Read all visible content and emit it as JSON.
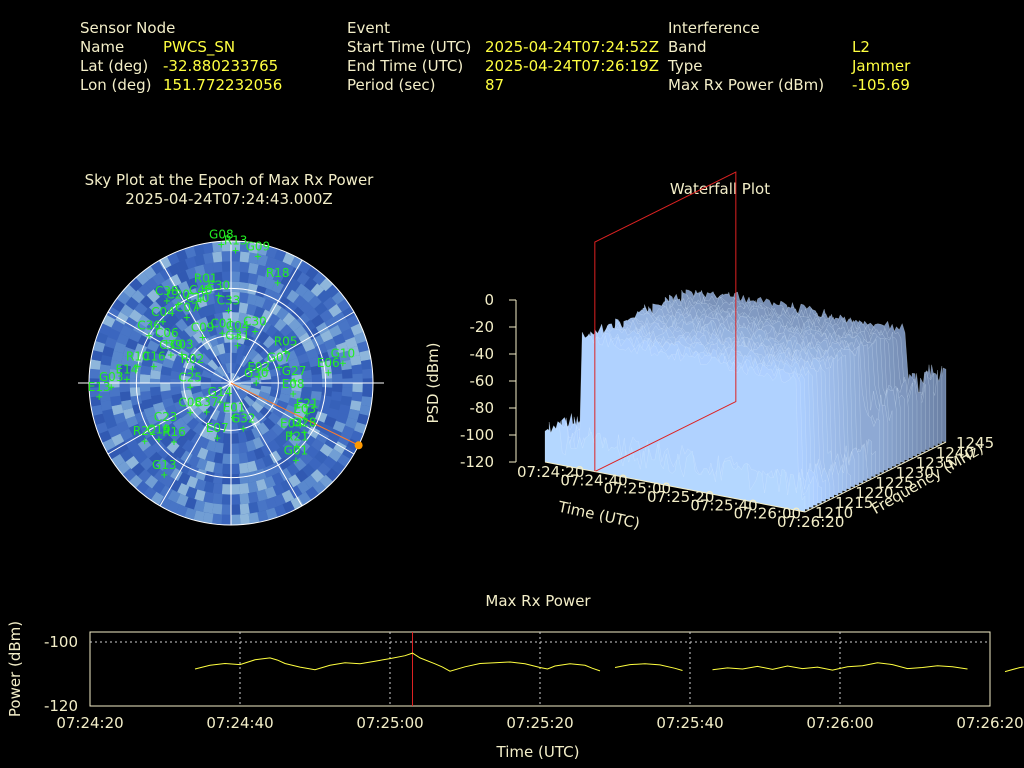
{
  "header": {
    "sensor": {
      "heading": "Sensor Node",
      "rows": [
        {
          "label": "Name",
          "value": "PWCS_SN"
        },
        {
          "label": "Lat (deg)",
          "value": "-32.880233765"
        },
        {
          "label": "Lon (deg)",
          "value": "151.772232056"
        }
      ]
    },
    "event": {
      "heading": "Event",
      "rows": [
        {
          "label": "Start Time (UTC)",
          "value": "2025-04-24T07:24:52Z"
        },
        {
          "label": "End Time (UTC)",
          "value": "2025-04-24T07:26:19Z"
        },
        {
          "label": "Period (sec)",
          "value": "87"
        }
      ]
    },
    "interference": {
      "heading": "Interference",
      "rows": [
        {
          "label": "Band",
          "value": "L2"
        },
        {
          "label": "Type",
          "value": "Jammer"
        },
        {
          "label": "Max Rx Power (dBm)",
          "value": "-105.69"
        }
      ]
    }
  },
  "colors": {
    "text": "#f3eec8",
    "value": "#ffff40",
    "satellite": "#22ee22",
    "marker": "#ff3333",
    "jammer": "#ff9900"
  },
  "chart_data": [
    {
      "type": "scatter",
      "name": "sky",
      "title": "Sky Plot at the Epoch of Max Rx Power",
      "subtitle": "2025-04-24T07:24:43.000Z",
      "projection": "polar",
      "satellites": [
        {
          "id": "G09",
          "az": 12,
          "el": 82
        },
        {
          "id": "G08",
          "az": 356,
          "el": 88
        },
        {
          "id": "R13",
          "az": 2,
          "el": 84
        },
        {
          "id": "R18",
          "az": 25,
          "el": 70
        },
        {
          "id": "C38",
          "az": 322,
          "el": 66
        },
        {
          "id": "C20",
          "az": 326,
          "el": 60
        },
        {
          "id": "R01",
          "az": 345,
          "el": 62
        },
        {
          "id": "C40",
          "az": 340,
          "el": 56
        },
        {
          "id": "C10",
          "az": 336,
          "el": 52
        },
        {
          "id": "E30",
          "az": 352,
          "el": 56
        },
        {
          "id": "C04",
          "az": 312,
          "el": 58
        },
        {
          "id": "C07",
          "az": 326,
          "el": 50
        },
        {
          "id": "C33",
          "az": 358,
          "el": 46
        },
        {
          "id": "C30",
          "az": 25,
          "el": 36
        },
        {
          "id": "C01",
          "az": 350,
          "el": 32
        },
        {
          "id": "C04",
          "az": 8,
          "el": 30
        },
        {
          "id": "C39",
          "az": 295,
          "el": 42
        },
        {
          "id": "C06",
          "az": 302,
          "el": 48
        },
        {
          "id": "C09",
          "az": 328,
          "el": 34
        },
        {
          "id": "G31",
          "az": 10,
          "el": 24
        },
        {
          "id": "C03",
          "az": 300,
          "el": 36
        },
        {
          "id": "R02",
          "az": 290,
          "el": 26
        },
        {
          "id": "C36",
          "az": 300,
          "el": 60
        },
        {
          "id": "R05",
          "az": 60,
          "el": 40
        },
        {
          "id": "E02",
          "az": 78,
          "el": 18
        },
        {
          "id": "G07",
          "az": 72,
          "el": 32
        },
        {
          "id": "R10",
          "az": 280,
          "el": 60
        },
        {
          "id": "C16",
          "az": 282,
          "el": 50
        },
        {
          "id": "E14",
          "az": 272,
          "el": 66
        },
        {
          "id": "G03",
          "az": 268,
          "el": 76
        },
        {
          "id": "E13",
          "az": 264,
          "el": 84
        },
        {
          "id": "G10",
          "az": 80,
          "el": 72
        },
        {
          "id": "E06",
          "az": 84,
          "el": 62
        },
        {
          "id": "G27",
          "az": 88,
          "el": 40
        },
        {
          "id": "C25",
          "az": 264,
          "el": 26
        },
        {
          "id": "G30",
          "az": 90,
          "el": 16
        },
        {
          "id": "E08",
          "az": 100,
          "el": 40
        },
        {
          "id": "C23",
          "az": 236,
          "el": 50
        },
        {
          "id": "C08",
          "az": 234,
          "el": 32
        },
        {
          "id": "E21",
          "az": 112,
          "el": 52
        },
        {
          "id": "E04",
          "az": 130,
          "el": 50
        },
        {
          "id": "G14",
          "az": 210,
          "el": 14
        },
        {
          "id": "C37",
          "az": 220,
          "el": 24
        },
        {
          "id": "R16",
          "az": 224,
          "el": 52
        },
        {
          "id": "R22",
          "az": 236,
          "el": 66
        },
        {
          "id": "E07",
          "az": 194,
          "el": 36
        },
        {
          "id": "C19",
          "az": 232,
          "el": 58
        },
        {
          "id": "E03",
          "az": 116,
          "el": 52
        },
        {
          "id": "G28",
          "az": 124,
          "el": 56
        },
        {
          "id": "R21",
          "az": 134,
          "el": 58
        },
        {
          "id": "G01",
          "az": 140,
          "el": 64
        },
        {
          "id": "G13",
          "az": 216,
          "el": 72
        },
        {
          "id": "G32",
          "az": 165,
          "el": 30
        },
        {
          "id": "E01",
          "az": 175,
          "el": 22
        }
      ],
      "jammer": {
        "az": 116,
        "el": 90
      }
    },
    {
      "type": "area",
      "name": "waterfall",
      "title": "Waterfall Plot",
      "xlabel": "Time (UTC)",
      "ylabel": "Frequency (MHz)",
      "zlabel": "PSD (dBm)",
      "x_ticks": [
        "07:24:20",
        "07:24:40",
        "07:25:00",
        "07:25:20",
        "07:25:40",
        "07:26:00",
        "07:26:20"
      ],
      "y_ticks": [
        "1210",
        "1215",
        "1220",
        "1225",
        "1230",
        "1235",
        "1240",
        "1245"
      ],
      "z_ticks": [
        "0",
        "-20",
        "-40",
        "-60",
        "-80",
        "-100",
        "-120"
      ],
      "zlim": [
        -120,
        0
      ],
      "marker_time": "07:24:43"
    },
    {
      "type": "line",
      "name": "maxrx",
      "title": "Max Rx Power",
      "xlabel": "Time (UTC)",
      "ylabel": "Power (dBm)",
      "x_ticks": [
        "07:24:20",
        "07:24:40",
        "07:25:00",
        "07:25:20",
        "07:25:40",
        "07:26:00",
        "07:26:20"
      ],
      "y_ticks": [
        "-100",
        "-120"
      ],
      "ylim": [
        -120,
        -100
      ],
      "grid": true,
      "marker_time_sec": 43,
      "segments": [
        [
          [
            14,
            -110
          ],
          [
            16,
            -109
          ],
          [
            18,
            -108.5
          ],
          [
            20,
            -108.8
          ],
          [
            22,
            -107.5
          ],
          [
            24,
            -107
          ],
          [
            25,
            -107.6
          ],
          [
            26,
            -108.5
          ],
          [
            28,
            -109.5
          ],
          [
            30,
            -110.2
          ],
          [
            32,
            -109
          ],
          [
            34,
            -108.3
          ],
          [
            36,
            -108.6
          ],
          [
            38,
            -107.9
          ],
          [
            40,
            -107.2
          ],
          [
            42,
            -106.4
          ],
          [
            43,
            -105.7
          ],
          [
            44,
            -107
          ],
          [
            46,
            -108.6
          ],
          [
            47,
            -109.5
          ],
          [
            48,
            -110.6
          ],
          [
            50,
            -109.4
          ],
          [
            52,
            -108.5
          ],
          [
            54,
            -108.3
          ],
          [
            56,
            -108.1
          ],
          [
            58,
            -108.6
          ],
          [
            60,
            -109.6
          ],
          [
            61,
            -110
          ],
          [
            62,
            -109.2
          ],
          [
            64,
            -108.6
          ],
          [
            66,
            -109
          ],
          [
            67,
            -109.8
          ],
          [
            68,
            -110.5
          ]
        ],
        [
          [
            70,
            -109.6
          ],
          [
            72,
            -108.8
          ],
          [
            74,
            -108.6
          ],
          [
            76,
            -108.9
          ],
          [
            78,
            -109.8
          ],
          [
            79,
            -110.4
          ]
        ],
        [
          [
            83,
            -110.2
          ],
          [
            85,
            -109.7
          ],
          [
            87,
            -110
          ],
          [
            89,
            -109.3
          ],
          [
            91,
            -110.1
          ],
          [
            93,
            -109.2
          ],
          [
            95,
            -109.9
          ],
          [
            97,
            -109.5
          ],
          [
            99,
            -110.3
          ],
          [
            101,
            -109.4
          ],
          [
            103,
            -109.1
          ],
          [
            105,
            -108.3
          ],
          [
            107,
            -108.8
          ],
          [
            109,
            -109.9
          ],
          [
            111,
            -109.6
          ],
          [
            113,
            -109.1
          ],
          [
            115,
            -109.4
          ],
          [
            117,
            -110
          ]
        ],
        [
          [
            122,
            -110.7
          ],
          [
            124,
            -109.6
          ],
          [
            126,
            -109.1
          ],
          [
            128,
            -108.6
          ],
          [
            130,
            -109.3
          ],
          [
            132,
            -110.2
          ],
          [
            134,
            -110.6
          ]
        ],
        [
          [
            139,
            -109.7
          ],
          [
            141,
            -109.2
          ],
          [
            143,
            -109.4
          ],
          [
            145,
            -110.3
          ]
        ],
        [
          [
            147,
            -110.4
          ],
          [
            149,
            -110
          ],
          [
            151,
            -110.5
          ],
          [
            153,
            -110.1
          ],
          [
            155,
            -110.6
          ],
          [
            157,
            -110.3
          ],
          [
            159,
            -110.6
          ]
        ],
        [
          [
            164,
            -110.7
          ],
          [
            166,
            -110.5
          ],
          [
            168,
            -110.2
          ],
          [
            170,
            -110.4
          ],
          [
            172,
            -110.1
          ],
          [
            174,
            -110.3
          ],
          [
            175,
            -110.6
          ]
        ],
        [
          [
            178,
            -110.8
          ],
          [
            178.5,
            -110.8
          ]
        ],
        [
          [
            182,
            -110.6
          ],
          [
            184,
            -110.6
          ]
        ]
      ]
    }
  ]
}
